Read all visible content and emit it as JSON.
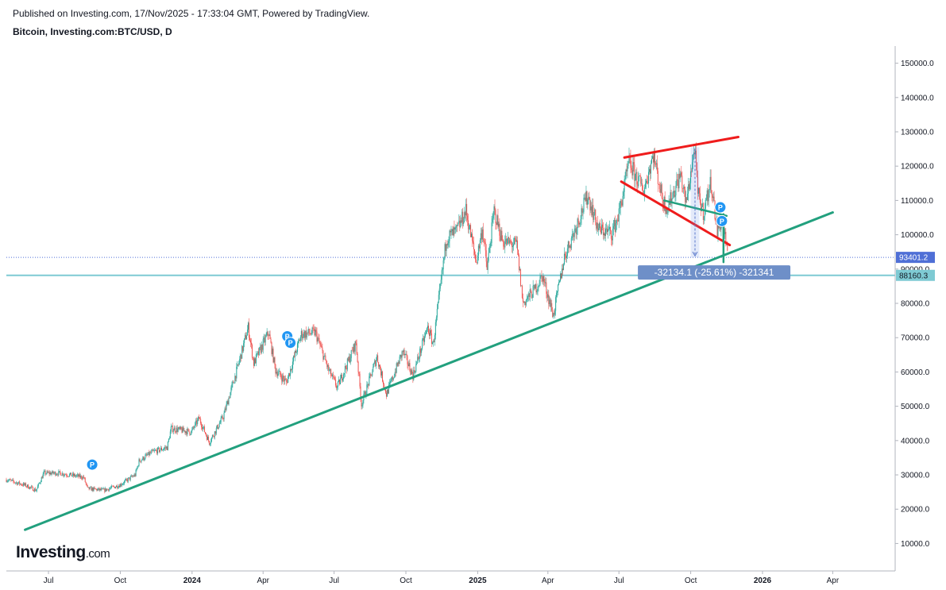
{
  "header": {
    "published": "Published on Investing.com, 17/Nov/2025 - 17:33:04 GMT, Powered by TradingView.",
    "symbol": "Bitcoin, Investing.com:BTC/USD, D"
  },
  "logo": {
    "main": "Investing",
    "suffix": ".com"
  },
  "chart_data": {
    "type": "candlestick",
    "title": "",
    "xlabel": "",
    "ylabel": "",
    "ylim": [
      2000,
      155000
    ],
    "y_ticks": [
      "10000.0",
      "20000.0",
      "30000.0",
      "40000.0",
      "50000.0",
      "60000.0",
      "70000.0",
      "80000.0",
      "90000.0",
      "100000.0",
      "110000.0",
      "120000.0",
      "130000.0",
      "140000.0",
      "150000.0"
    ],
    "x_ticks": [
      {
        "label": "Jul",
        "date": "2023-07-01",
        "bold": false
      },
      {
        "label": "Oct",
        "date": "2023-10-01",
        "bold": false
      },
      {
        "label": "2024",
        "date": "2024-01-01",
        "bold": true
      },
      {
        "label": "Apr",
        "date": "2024-04-01",
        "bold": false
      },
      {
        "label": "Jul",
        "date": "2024-07-01",
        "bold": false
      },
      {
        "label": "Oct",
        "date": "2024-10-01",
        "bold": false
      },
      {
        "label": "2025",
        "date": "2025-01-01",
        "bold": true
      },
      {
        "label": "Apr",
        "date": "2025-04-01",
        "bold": false
      },
      {
        "label": "Jul",
        "date": "2025-07-01",
        "bold": false
      },
      {
        "label": "Oct",
        "date": "2025-10-01",
        "bold": false
      },
      {
        "label": "2026",
        "date": "2026-01-01",
        "bold": true
      },
      {
        "label": "Apr",
        "date": "2026-04-01",
        "bold": false
      }
    ],
    "x_range": [
      "2023-05-08",
      "2026-06-20"
    ],
    "price_path": [
      [
        "2023-05-08",
        28600
      ],
      [
        "2023-06-01",
        27000
      ],
      [
        "2023-06-15",
        25500
      ],
      [
        "2023-06-25",
        30500
      ],
      [
        "2023-07-15",
        30500
      ],
      [
        "2023-08-15",
        29300
      ],
      [
        "2023-08-20",
        26000
      ],
      [
        "2023-09-10",
        25500
      ],
      [
        "2023-09-30",
        27000
      ],
      [
        "2023-10-20",
        30000
      ],
      [
        "2023-10-25",
        34000
      ],
      [
        "2023-11-10",
        36500
      ],
      [
        "2023-11-30",
        38000
      ],
      [
        "2023-12-05",
        43500
      ],
      [
        "2023-12-31",
        42500
      ],
      [
        "2024-01-10",
        46500
      ],
      [
        "2024-01-23",
        39500
      ],
      [
        "2024-02-10",
        47000
      ],
      [
        "2024-02-28",
        61000
      ],
      [
        "2024-03-13",
        73000
      ],
      [
        "2024-03-20",
        62500
      ],
      [
        "2024-04-08",
        71500
      ],
      [
        "2024-04-17",
        60500
      ],
      [
        "2024-05-01",
        57000
      ],
      [
        "2024-05-20",
        71000
      ],
      [
        "2024-06-07",
        71500
      ],
      [
        "2024-06-24",
        60500
      ],
      [
        "2024-07-05",
        55500
      ],
      [
        "2024-07-29",
        68500
      ],
      [
        "2024-08-05",
        50500
      ],
      [
        "2024-08-25",
        64500
      ],
      [
        "2024-09-06",
        53500
      ],
      [
        "2024-09-27",
        66000
      ],
      [
        "2024-10-10",
        59000
      ],
      [
        "2024-10-29",
        73000
      ],
      [
        "2024-11-05",
        68000
      ],
      [
        "2024-11-22",
        99000
      ],
      [
        "2024-12-05",
        101000
      ],
      [
        "2024-12-17",
        107000
      ],
      [
        "2024-12-30",
        92000
      ],
      [
        "2025-01-07",
        102000
      ],
      [
        "2025-01-13",
        90000
      ],
      [
        "2025-01-22",
        107000
      ],
      [
        "2025-02-02",
        98000
      ],
      [
        "2025-02-20",
        97000
      ],
      [
        "2025-02-28",
        80000
      ],
      [
        "2025-03-15",
        84000
      ],
      [
        "2025-03-25",
        88000
      ],
      [
        "2025-04-08",
        76500
      ],
      [
        "2025-04-22",
        93500
      ],
      [
        "2025-05-08",
        103000
      ],
      [
        "2025-05-22",
        111500
      ],
      [
        "2025-06-05",
        101500
      ],
      [
        "2025-06-22",
        100500
      ],
      [
        "2025-07-01",
        106000
      ],
      [
        "2025-07-14",
        121000
      ],
      [
        "2025-07-25",
        116000
      ],
      [
        "2025-08-02",
        113000
      ],
      [
        "2025-08-14",
        123500
      ],
      [
        "2025-08-26",
        110000
      ],
      [
        "2025-09-01",
        108000
      ],
      [
        "2025-09-18",
        117500
      ],
      [
        "2025-09-25",
        109000
      ],
      [
        "2025-10-06",
        125500
      ],
      [
        "2025-10-10",
        112000
      ],
      [
        "2025-10-17",
        106500
      ],
      [
        "2025-10-27",
        115500
      ],
      [
        "2025-11-04",
        101000
      ],
      [
        "2025-11-11",
        105000
      ],
      [
        "2025-11-17",
        93401
      ]
    ],
    "current_price": {
      "value": 93401.2,
      "label": "93401.2",
      "bg": "#4f6fd6"
    },
    "horizontal_line": {
      "value": 88160.3,
      "label": "88160.3",
      "color": "#7ecad3"
    },
    "annotations": {
      "support_trendline": {
        "from": [
          "2023-06-01",
          14000
        ],
        "to": [
          "2026-04-01",
          106500
        ],
        "color": "#22a07e"
      },
      "wedge_upper": {
        "from": [
          "2025-07-08",
          122500
        ],
        "to": [
          "2025-12-01",
          128500
        ],
        "color": "#ef1c1c"
      },
      "wedge_lower": {
        "from": [
          "2025-07-04",
          115500
        ],
        "to": [
          "2025-11-20",
          97000
        ],
        "color": "#ef1c1c"
      },
      "teal_short": {
        "from": [
          "2025-08-28",
          110000
        ],
        "to": [
          "2025-11-16",
          105500
        ],
        "color": "#22a07e"
      },
      "teal_vertical": {
        "from": [
          "2025-11-12",
          92000
        ],
        "to": [
          "2025-11-12",
          106000
        ],
        "color": "#22a07e"
      },
      "measure": {
        "from_date": "2025-10-01",
        "to_date": "2025-10-12",
        "high": 125500,
        "low": 93401,
        "label": "-32134.1 (-25.61%) -321341",
        "label_price": 89000,
        "label_date": "2025-10-31"
      },
      "pivot_markers": [
        {
          "date": "2023-08-26",
          "price": 33000,
          "text": "P"
        },
        {
          "date": "2024-05-02",
          "price": 70400,
          "text": "P"
        },
        {
          "date": "2024-05-06",
          "price": 68500,
          "text": "P"
        },
        {
          "date": "2025-11-08",
          "price": 108000,
          "text": "P"
        },
        {
          "date": "2025-11-10",
          "price": 104000,
          "text": "P"
        }
      ]
    },
    "colors": {
      "up": "#26a69a",
      "down": "#ef5350",
      "axis": "#b2b5be",
      "pivot": "#2196f3"
    }
  }
}
